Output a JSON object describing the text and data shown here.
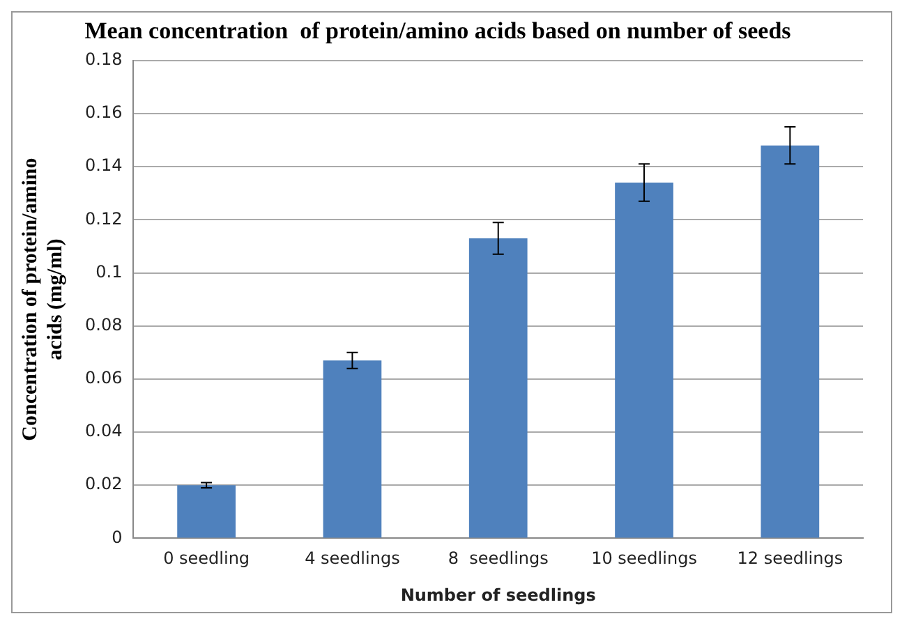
{
  "chart_data": {
    "type": "bar",
    "title": "Mean concentration  of protein/amino acids based on number of seeds",
    "xlabel": "Number of seedlings",
    "ylabel": "Concentration of protein/amino acids (mg/ml)",
    "categories": [
      "0 seedling",
      "4 seedlings",
      "8  seedlings",
      "10 seedlings",
      "12 seedlings"
    ],
    "values": [
      0.02,
      0.067,
      0.113,
      0.134,
      0.148
    ],
    "color": "#4f81bd",
    "errors": [
      0.001,
      0.003,
      0.006,
      0.007,
      0.007
    ],
    "ylim": [
      0,
      0.18
    ],
    "yticks": [
      0,
      0.02,
      0.04,
      0.06,
      0.08,
      0.1,
      0.12,
      0.14,
      0.16,
      0.18
    ],
    "grid": "y",
    "legend": false
  }
}
